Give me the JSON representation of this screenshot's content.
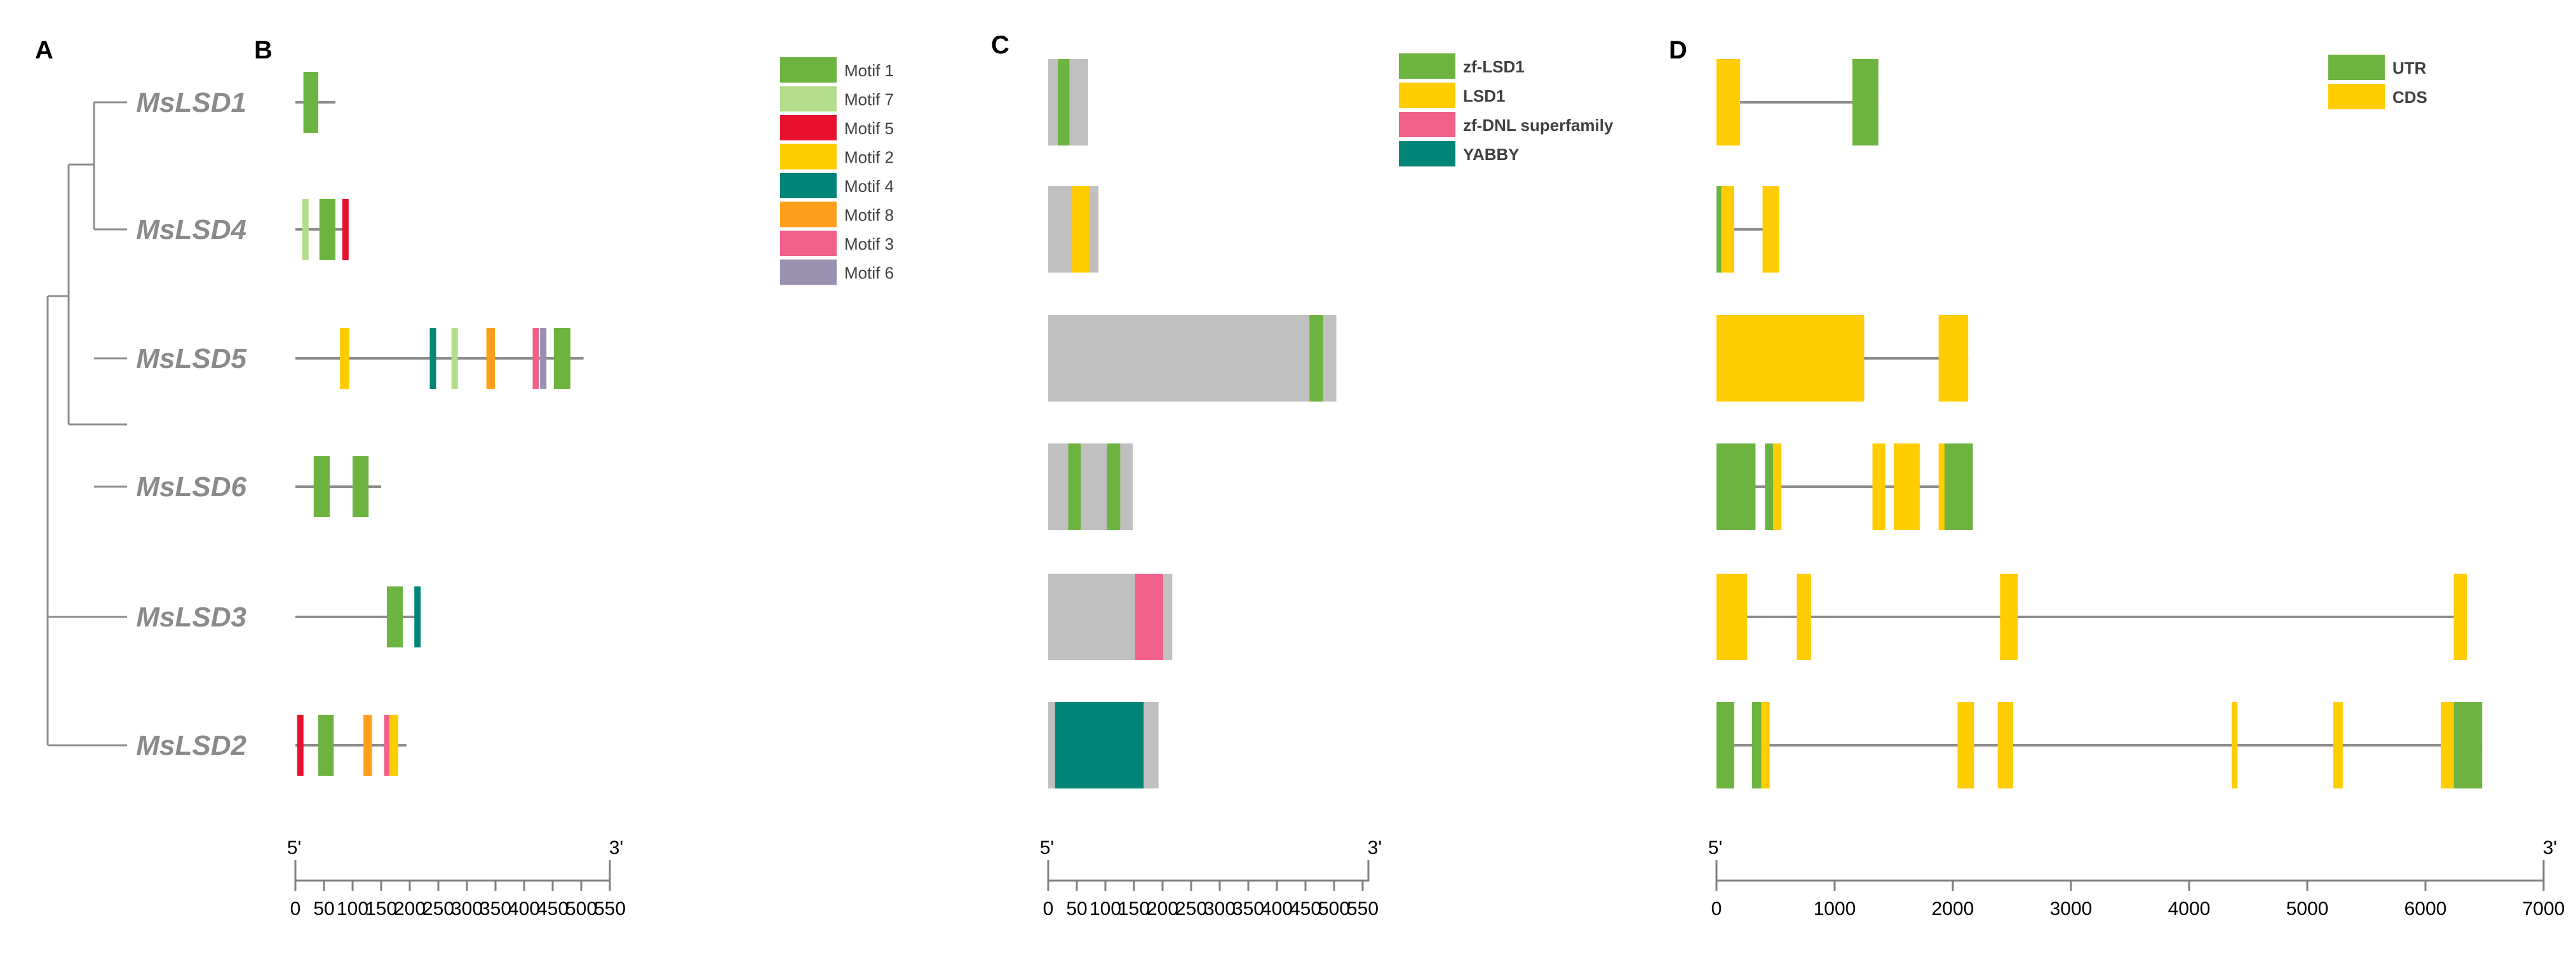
{
  "panels": {
    "A": "A",
    "B": "B",
    "C": "C",
    "D": "D"
  },
  "genes": [
    "MsLSD1",
    "MsLSD4",
    "MsLSD5",
    "MsLSD6",
    "MsLSD3",
    "MsLSD2"
  ],
  "motif_legend": [
    {
      "name": "Motif 1",
      "color": "#6db33f"
    },
    {
      "name": "Motif 7",
      "color": "#b3dd8a"
    },
    {
      "name": "Motif 5",
      "color": "#e8112d"
    },
    {
      "name": "Motif 2",
      "color": "#ffcc00"
    },
    {
      "name": "Motif 4",
      "color": "#008577"
    },
    {
      "name": "Motif 8",
      "color": "#ff9f1c"
    },
    {
      "name": "Motif 3",
      "color": "#f0608a"
    },
    {
      "name": "Motif 6",
      "color": "#9a90b0"
    }
  ],
  "domain_legend": [
    {
      "name": "zf-LSD1",
      "color": "#6db33f"
    },
    {
      "name": "LSD1",
      "color": "#ffcc00"
    },
    {
      "name": "zf-DNL superfamily",
      "color": "#f0608a"
    },
    {
      "name": "YABBY",
      "color": "#008577"
    }
  ],
  "structure_legend": [
    {
      "name": "UTR",
      "color": "#6db33f"
    },
    {
      "name": "CDS",
      "color": "#ffcc00"
    }
  ],
  "colors": {
    "protein_body": "#c0c0c0",
    "line": "#8c8c8c"
  },
  "chart_data": [
    {
      "type": "motif-diagram",
      "title": "B",
      "unit": "aa",
      "axis_start": "5'",
      "axis_end": "3'",
      "ticks": [
        0,
        50,
        100,
        150,
        200,
        250,
        300,
        350,
        400,
        450,
        500,
        550
      ],
      "xlim": [
        0,
        550
      ],
      "genes": [
        {
          "name": "MsLSD1",
          "length": 70,
          "motifs": [
            [
              "Motif 1",
              14,
              40
            ]
          ]
        },
        {
          "name": "MsLSD4",
          "length": 88,
          "motifs": [
            [
              "Motif 7",
              12,
              16
            ],
            [
              "Motif 1",
              42,
              70
            ],
            [
              "Motif 5",
              82,
              87
            ]
          ]
        },
        {
          "name": "MsLSD5",
          "length": 504,
          "motifs": [
            [
              "Motif 2",
              78,
              94
            ],
            [
              "Motif 4",
              235,
              241
            ],
            [
              "Motif 7",
              273,
              279
            ],
            [
              "Motif 8",
              334,
              349
            ],
            [
              "Motif 3",
              415,
              420
            ],
            [
              "Motif 6",
              428,
              435
            ],
            [
              "Motif 1",
              452,
              481
            ]
          ]
        },
        {
          "name": "MsLSD6",
          "length": 150,
          "motifs": [
            [
              "Motif 1",
              32,
              60
            ],
            [
              "Motif 1",
              100,
              128
            ]
          ]
        },
        {
          "name": "MsLSD3",
          "length": 215,
          "motifs": [
            [
              "Motif 1",
              160,
              188
            ],
            [
              "Motif 4",
              208,
              214
            ]
          ]
        },
        {
          "name": "MsLSD2",
          "length": 194,
          "motifs": [
            [
              "Motif 5",
              3,
              8
            ],
            [
              "Motif 1",
              40,
              67
            ],
            [
              "Motif 8",
              119,
              134
            ],
            [
              "Motif 3",
              155,
              160
            ],
            [
              "Motif 2",
              164,
              180
            ]
          ]
        }
      ]
    },
    {
      "type": "domain-diagram",
      "title": "C",
      "unit": "aa",
      "axis_start": "5'",
      "axis_end": "3'",
      "ticks": [
        0,
        50,
        100,
        150,
        200,
        250,
        300,
        350,
        400,
        450,
        500,
        550
      ],
      "xlim": [
        0,
        560
      ],
      "genes": [
        {
          "name": "MsLSD1",
          "length": 70,
          "domains": [
            [
              "zf-LSD1",
              17,
              37
            ]
          ]
        },
        {
          "name": "MsLSD4",
          "length": 88,
          "domains": [
            [
              "LSD1",
              42,
              72
            ]
          ]
        },
        {
          "name": "MsLSD5",
          "length": 504,
          "domains": [
            [
              "zf-LSD1",
              457,
              481
            ]
          ]
        },
        {
          "name": "MsLSD6",
          "length": 148,
          "domains": [
            [
              "zf-LSD1",
              35,
              57
            ],
            [
              "zf-LSD1",
              103,
              126
            ]
          ]
        },
        {
          "name": "MsLSD3",
          "length": 217,
          "domains": [
            [
              "zf-DNL superfamily",
              152,
              201
            ]
          ]
        },
        {
          "name": "MsLSD2",
          "length": 193,
          "domains": [
            [
              "YABBY",
              12,
              167
            ]
          ]
        }
      ]
    },
    {
      "type": "gene-structure",
      "title": "D",
      "unit": "bp",
      "axis_start": "5'",
      "axis_end": "3'",
      "ticks": [
        0,
        1000,
        2000,
        3000,
        4000,
        5000,
        6000,
        7000
      ],
      "xlim": [
        0,
        7000
      ],
      "genes": [
        {
          "name": "MsLSD1",
          "length": 1370,
          "features": [
            [
              "CDS",
              0,
              200
            ],
            [
              "UTR",
              1150,
              1370
            ]
          ]
        },
        {
          "name": "MsLSD4",
          "length": 530,
          "features": [
            [
              "UTR",
              0,
              40
            ],
            [
              "CDS",
              40,
              150
            ],
            [
              "CDS",
              390,
              530
            ]
          ]
        },
        {
          "name": "MsLSD5",
          "length": 2130,
          "features": [
            [
              "CDS",
              0,
              1250
            ],
            [
              "CDS",
              1880,
              2130
            ]
          ]
        },
        {
          "name": "MsLSD6",
          "length": 2170,
          "features": [
            [
              "UTR",
              0,
              330
            ],
            [
              "UTR",
              410,
              480
            ],
            [
              "CDS",
              480,
              550
            ],
            [
              "CDS",
              1320,
              1430
            ],
            [
              "CDS",
              1500,
              1720
            ],
            [
              "CDS",
              1880,
              1930
            ],
            [
              "UTR",
              1930,
              2170
            ]
          ]
        },
        {
          "name": "MsLSD3",
          "length": 6350,
          "features": [
            [
              "CDS",
              0,
              260
            ],
            [
              "CDS",
              680,
              800
            ],
            [
              "CDS",
              2400,
              2550
            ],
            [
              "CDS",
              6240,
              6350
            ]
          ]
        },
        {
          "name": "MsLSD2",
          "length": 6480,
          "features": [
            [
              "UTR",
              0,
              150
            ],
            [
              "UTR",
              300,
              380
            ],
            [
              "CDS",
              380,
              450
            ],
            [
              "CDS",
              2040,
              2180
            ],
            [
              "CDS",
              2380,
              2510
            ],
            [
              "CDS",
              4360,
              4410
            ],
            [
              "CDS",
              5220,
              5300
            ],
            [
              "CDS",
              6130,
              6240
            ],
            [
              "UTR",
              6240,
              6480
            ]
          ]
        }
      ]
    }
  ]
}
